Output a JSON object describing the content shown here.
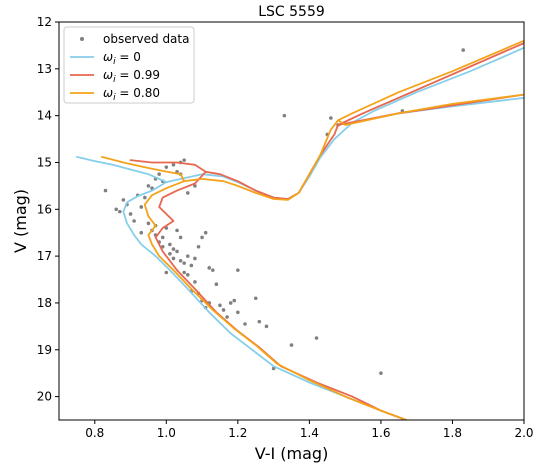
{
  "chart_data": {
    "type": "line",
    "title": "LSC 5559",
    "xlabel": "V-I (mag)",
    "ylabel": "V (mag)",
    "xlim": [
      0.7,
      2.0
    ],
    "ylim": [
      20.5,
      12.0
    ],
    "y_inverted": true,
    "grid": false,
    "legend_position": "top-left",
    "xticks": [
      0.8,
      1.0,
      1.2,
      1.4,
      1.6,
      1.8,
      2.0
    ],
    "xtick_labels": [
      "0.8",
      "1.0",
      "1.2",
      "1.4",
      "1.6",
      "1.8",
      "2.0"
    ],
    "yticks": [
      12,
      13,
      14,
      15,
      16,
      17,
      18,
      19,
      20
    ],
    "ytick_labels": [
      "12",
      "13",
      "14",
      "15",
      "16",
      "17",
      "18",
      "19",
      "20"
    ],
    "legend": [
      {
        "label": "observed data",
        "kind": "marker",
        "color": "#808080"
      },
      {
        "label": "ωi = 0",
        "kind": "line",
        "color": "#87CEEB",
        "omega_text": "ω",
        "sub_text": "i",
        "value_text": " = 0"
      },
      {
        "label": "ωi = 0.99",
        "kind": "line",
        "color": "#E8674F",
        "omega_text": "ω",
        "sub_text": "i",
        "value_text": " = 0.99"
      },
      {
        "label": "ωi = 0.80",
        "kind": "line",
        "color": "#F5A21B",
        "omega_text": "ω",
        "sub_text": "i",
        "value_text": " = 0.80"
      }
    ],
    "scatter": {
      "name": "observed data",
      "color": "#808080",
      "points": [
        [
          0.83,
          15.6
        ],
        [
          0.86,
          16.0
        ],
        [
          0.87,
          16.05
        ],
        [
          0.88,
          15.8
        ],
        [
          0.89,
          15.9
        ],
        [
          0.9,
          16.1
        ],
        [
          0.92,
          15.7
        ],
        [
          0.93,
          15.95
        ],
        [
          0.94,
          15.75
        ],
        [
          0.95,
          15.5
        ],
        [
          0.96,
          15.55
        ],
        [
          0.97,
          15.35
        ],
        [
          0.98,
          15.25
        ],
        [
          0.99,
          15.4
        ],
        [
          1.0,
          15.1
        ],
        [
          1.02,
          15.05
        ],
        [
          1.03,
          15.2
        ],
        [
          1.04,
          15.0
        ],
        [
          1.05,
          14.95
        ],
        [
          1.04,
          15.25
        ],
        [
          0.95,
          16.3
        ],
        [
          0.96,
          16.45
        ],
        [
          0.97,
          16.55
        ],
        [
          0.98,
          16.7
        ],
        [
          0.99,
          16.8
        ],
        [
          1.0,
          16.4
        ],
        [
          1.01,
          16.95
        ],
        [
          1.02,
          17.05
        ],
        [
          1.03,
          16.9
        ],
        [
          1.04,
          17.1
        ],
        [
          1.05,
          17.15
        ],
        [
          1.06,
          17.0
        ],
        [
          1.07,
          17.2
        ],
        [
          1.08,
          17.05
        ],
        [
          1.09,
          16.8
        ],
        [
          1.1,
          16.6
        ],
        [
          1.11,
          16.5
        ],
        [
          1.12,
          17.25
        ],
        [
          1.13,
          17.3
        ],
        [
          1.05,
          17.35
        ],
        [
          1.0,
          17.35
        ],
        [
          1.02,
          16.85
        ],
        [
          1.04,
          16.6
        ],
        [
          0.97,
          16.35
        ],
        [
          0.99,
          16.6
        ],
        [
          1.06,
          17.4
        ],
        [
          1.08,
          17.55
        ],
        [
          1.07,
          17.75
        ],
        [
          1.09,
          17.8
        ],
        [
          1.1,
          17.95
        ],
        [
          1.12,
          18.0
        ],
        [
          1.11,
          18.1
        ],
        [
          1.15,
          18.05
        ],
        [
          1.16,
          18.15
        ],
        [
          1.17,
          18.3
        ],
        [
          1.18,
          18.0
        ],
        [
          1.2,
          18.2
        ],
        [
          1.22,
          18.45
        ],
        [
          1.19,
          17.95
        ],
        [
          1.25,
          17.9
        ],
        [
          1.26,
          18.4
        ],
        [
          1.28,
          18.5
        ],
        [
          1.2,
          17.3
        ],
        [
          1.33,
          14.0
        ],
        [
          1.35,
          18.9
        ],
        [
          1.42,
          18.75
        ],
        [
          1.3,
          19.4
        ],
        [
          1.6,
          19.5
        ],
        [
          1.46,
          14.05
        ],
        [
          1.45,
          14.4
        ],
        [
          1.48,
          14.2
        ],
        [
          1.66,
          13.9
        ],
        [
          1.83,
          12.6
        ],
        [
          1.08,
          15.5
        ],
        [
          1.06,
          15.65
        ],
        [
          0.91,
          16.25
        ],
        [
          0.93,
          16.5
        ],
        [
          1.01,
          16.75
        ],
        [
          1.03,
          16.45
        ],
        [
          1.14,
          17.6
        ]
      ]
    },
    "series": [
      {
        "name": "ωi = 0",
        "color": "#87CEEB",
        "segments": [
          [
            [
              0.75,
              14.88
            ],
            [
              0.8,
              14.97
            ],
            [
              0.85,
              15.05
            ],
            [
              0.9,
              15.15
            ],
            [
              0.95,
              15.25
            ],
            [
              1.0,
              15.42
            ],
            [
              0.96,
              15.6
            ],
            [
              0.92,
              15.72
            ],
            [
              0.89,
              15.85
            ],
            [
              0.88,
              16.05
            ],
            [
              0.89,
              16.3
            ],
            [
              0.91,
              16.55
            ],
            [
              0.93,
              16.75
            ],
            [
              0.97,
              17.0
            ],
            [
              1.01,
              17.3
            ],
            [
              1.06,
              17.7
            ],
            [
              1.12,
              18.2
            ],
            [
              1.18,
              18.65
            ],
            [
              1.24,
              19.0
            ],
            [
              1.3,
              19.35
            ],
            [
              1.4,
              19.7
            ],
            [
              1.5,
              20.0
            ],
            [
              1.6,
              20.3
            ],
            [
              1.67,
              20.5
            ]
          ],
          [
            [
              1.0,
              15.42
            ],
            [
              1.1,
              15.25
            ],
            [
              1.16,
              15.3
            ],
            [
              1.2,
              15.42
            ],
            [
              1.25,
              15.6
            ],
            [
              1.3,
              15.75
            ],
            [
              1.34,
              15.78
            ],
            [
              1.37,
              15.65
            ],
            [
              1.4,
              15.3
            ],
            [
              1.43,
              14.9
            ],
            [
              1.47,
              14.5
            ],
            [
              1.52,
              14.15
            ],
            [
              1.58,
              13.9
            ],
            [
              1.7,
              13.5
            ],
            [
              1.85,
              13.05
            ],
            [
              2.0,
              12.55
            ]
          ],
          [
            [
              1.52,
              14.15
            ],
            [
              1.65,
              13.95
            ],
            [
              1.8,
              13.8
            ],
            [
              2.0,
              13.62
            ]
          ]
        ]
      },
      {
        "name": "ωi = 0.99",
        "color": "#E8674F",
        "segments": [
          [
            [
              0.9,
              14.95
            ],
            [
              0.96,
              15.0
            ],
            [
              1.03,
              15.0
            ],
            [
              1.08,
              15.05
            ],
            [
              1.11,
              15.2
            ],
            [
              1.08,
              15.45
            ],
            [
              1.03,
              15.6
            ],
            [
              0.99,
              15.75
            ],
            [
              0.98,
              15.95
            ],
            [
              1.0,
              16.1
            ],
            [
              1.02,
              16.25
            ],
            [
              0.99,
              16.4
            ],
            [
              0.97,
              16.6
            ],
            [
              0.99,
              16.9
            ],
            [
              1.03,
              17.3
            ],
            [
              1.08,
              17.7
            ],
            [
              1.14,
              18.2
            ],
            [
              1.2,
              18.6
            ],
            [
              1.26,
              18.95
            ],
            [
              1.32,
              19.35
            ],
            [
              1.42,
              19.7
            ],
            [
              1.52,
              20.0
            ],
            [
              1.6,
              20.3
            ],
            [
              1.67,
              20.5
            ]
          ],
          [
            [
              1.11,
              15.2
            ],
            [
              1.15,
              15.25
            ],
            [
              1.2,
              15.4
            ],
            [
              1.25,
              15.6
            ],
            [
              1.3,
              15.75
            ],
            [
              1.34,
              15.78
            ],
            [
              1.37,
              15.65
            ],
            [
              1.4,
              15.25
            ],
            [
              1.43,
              14.85
            ],
            [
              1.47,
              14.4
            ],
            [
              1.48,
              14.2
            ],
            [
              1.55,
              13.95
            ],
            [
              1.7,
              13.45
            ],
            [
              1.85,
              12.95
            ],
            [
              2.0,
              12.45
            ]
          ],
          [
            [
              1.48,
              14.2
            ],
            [
              1.65,
              13.95
            ],
            [
              1.8,
              13.78
            ],
            [
              2.0,
              13.55
            ]
          ]
        ]
      },
      {
        "name": "ωi = 0.80",
        "color": "#F5A21B",
        "segments": [
          [
            [
              0.82,
              14.88
            ],
            [
              0.88,
              15.0
            ],
            [
              0.94,
              15.1
            ],
            [
              0.99,
              15.18
            ],
            [
              1.04,
              15.25
            ],
            [
              1.05,
              15.4
            ],
            [
              1.0,
              15.55
            ],
            [
              0.96,
              15.7
            ],
            [
              0.94,
              15.9
            ],
            [
              0.95,
              16.15
            ],
            [
              0.97,
              16.35
            ],
            [
              0.95,
              16.55
            ],
            [
              0.96,
              16.75
            ],
            [
              0.98,
              17.0
            ],
            [
              1.02,
              17.3
            ],
            [
              1.07,
              17.7
            ],
            [
              1.13,
              18.15
            ],
            [
              1.19,
              18.55
            ],
            [
              1.25,
              18.9
            ],
            [
              1.31,
              19.3
            ],
            [
              1.4,
              19.65
            ],
            [
              1.5,
              20.0
            ],
            [
              1.6,
              20.3
            ],
            [
              1.67,
              20.5
            ]
          ],
          [
            [
              1.05,
              15.4
            ],
            [
              1.1,
              15.35
            ],
            [
              1.16,
              15.4
            ],
            [
              1.2,
              15.5
            ],
            [
              1.25,
              15.65
            ],
            [
              1.3,
              15.78
            ],
            [
              1.34,
              15.8
            ],
            [
              1.37,
              15.65
            ],
            [
              1.4,
              15.25
            ],
            [
              1.43,
              14.85
            ],
            [
              1.46,
              14.3
            ],
            [
              1.48,
              14.1
            ],
            [
              1.52,
              13.95
            ],
            [
              1.65,
              13.5
            ],
            [
              1.8,
              13.05
            ],
            [
              2.0,
              12.4
            ]
          ],
          [
            [
              1.48,
              14.1
            ],
            [
              1.5,
              14.2
            ],
            [
              1.65,
              13.95
            ],
            [
              1.8,
              13.75
            ],
            [
              2.0,
              13.55
            ]
          ]
        ]
      }
    ]
  }
}
